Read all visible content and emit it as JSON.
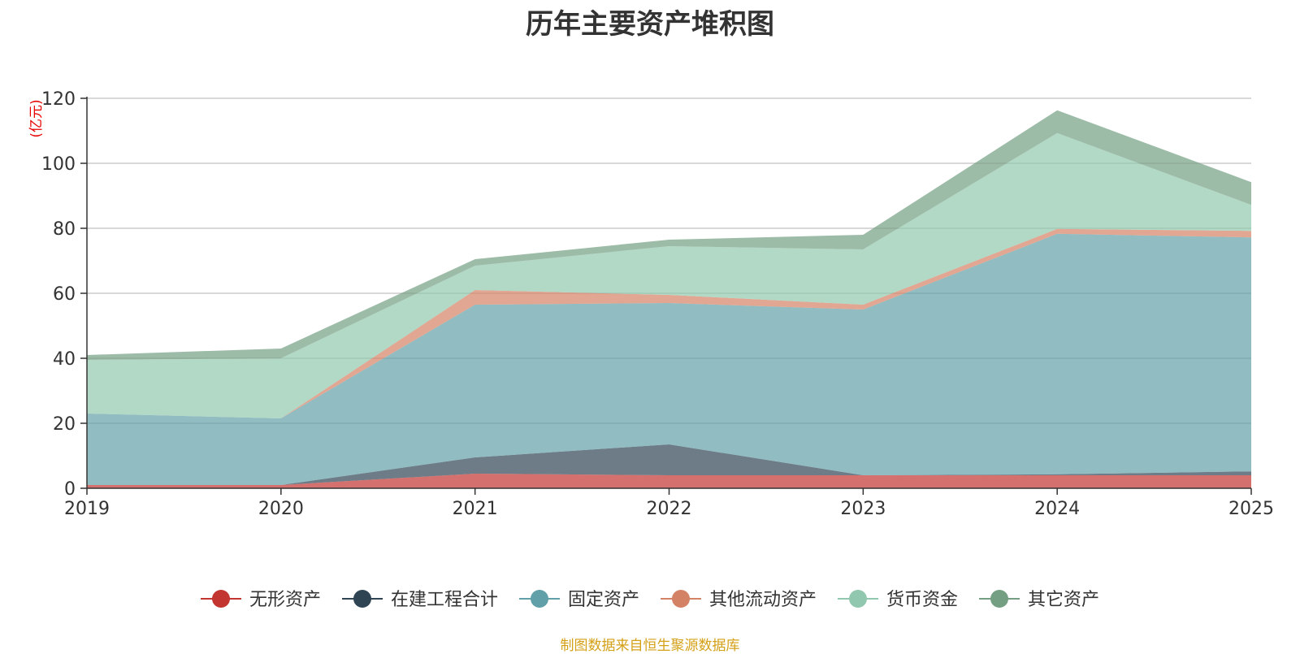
{
  "chart_data": {
    "type": "area",
    "stacked": true,
    "title": "历年主要资产堆积图",
    "unit_label": "(亿元)",
    "x": [
      "2019",
      "2020",
      "2021",
      "2022",
      "2023",
      "2024",
      "2025"
    ],
    "ylim": [
      0,
      120
    ],
    "yticks": [
      0,
      20,
      40,
      60,
      80,
      100,
      120
    ],
    "grid": true,
    "legend_position": "bottom",
    "series": [
      {
        "name": "无形资产",
        "color": "#c23531",
        "values": [
          1.0,
          1.0,
          4.5,
          4.0,
          4.0,
          4.0,
          4.0
        ]
      },
      {
        "name": "在建工程合计",
        "color": "#2f4554",
        "values": [
          0.0,
          0.0,
          5.0,
          9.5,
          0.0,
          0.3,
          1.2
        ]
      },
      {
        "name": "固定资产",
        "color": "#61a0a8",
        "values": [
          22.0,
          20.5,
          47.0,
          43.5,
          51.0,
          74.0,
          72.0
        ]
      },
      {
        "name": "其他流动资产",
        "color": "#d48265",
        "values": [
          0.0,
          0.0,
          4.5,
          2.5,
          1.5,
          1.5,
          2.0
        ]
      },
      {
        "name": "货币资金",
        "color": "#91c7ae",
        "values": [
          16.5,
          18.5,
          7.5,
          15.0,
          17.0,
          29.5,
          8.0
        ]
      },
      {
        "name": "其它资产",
        "color": "#749f83",
        "values": [
          1.5,
          3.0,
          2.0,
          2.0,
          4.5,
          7.0,
          7.0
        ]
      }
    ],
    "source_note": "制图数据来自恒生聚源数据库"
  }
}
